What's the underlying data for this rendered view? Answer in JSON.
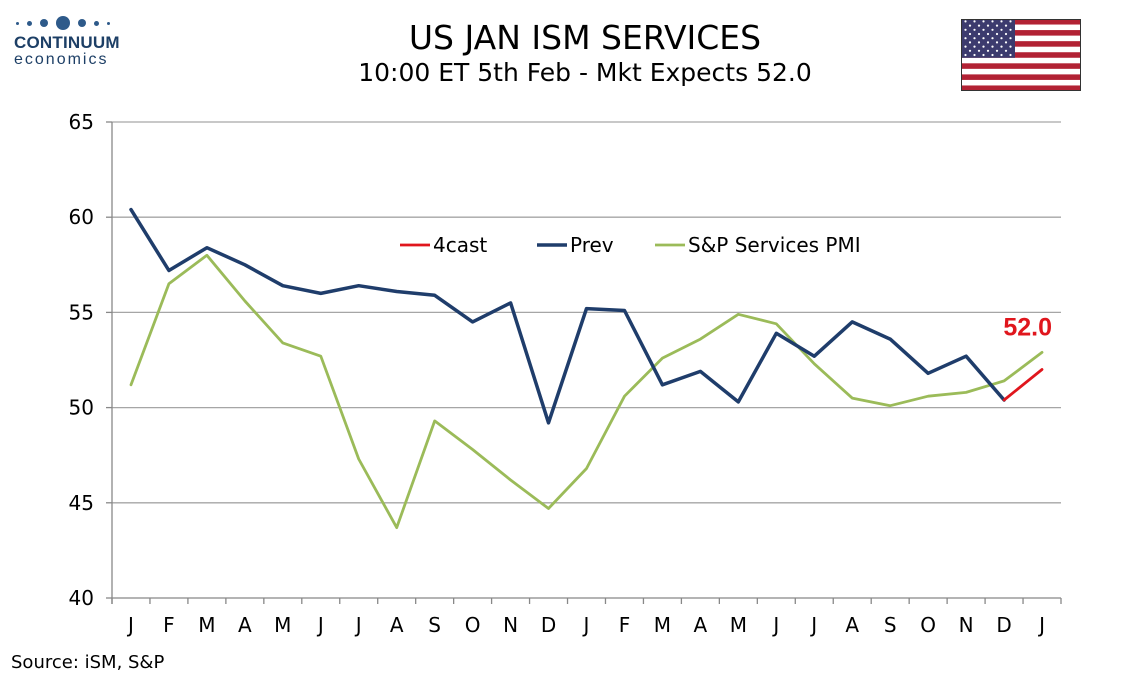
{
  "logo": {
    "brand": "CONTINUUM",
    "sub": "economics"
  },
  "header": {
    "title": "US JAN ISM SERVICES",
    "subtitle": "10:00 ET 5th Feb - Mkt Expects 52.0"
  },
  "flag_icon": "us-flag-icon",
  "colors": {
    "forecast": "#e0161d",
    "prev": "#1f3d6b",
    "pmi": "#9bbb59",
    "grid": "#a6a6a6"
  },
  "chart_data": {
    "type": "line",
    "categories": [
      "J",
      "F",
      "M",
      "A",
      "M",
      "J",
      "J",
      "A",
      "S",
      "O",
      "N",
      "D",
      "J",
      "F",
      "M",
      "A",
      "M",
      "J",
      "J",
      "A",
      "S",
      "O",
      "N",
      "D",
      "J"
    ],
    "ylim": [
      40,
      65
    ],
    "yticks": [
      40,
      45,
      50,
      55,
      60,
      65
    ],
    "grid": true,
    "legend_position": "top-center",
    "series": [
      {
        "name": "4cast",
        "color": "#e0161d",
        "values": [
          null,
          null,
          null,
          null,
          null,
          null,
          null,
          null,
          null,
          null,
          null,
          null,
          null,
          null,
          null,
          null,
          null,
          null,
          null,
          null,
          null,
          null,
          null,
          50.4,
          52.0
        ]
      },
      {
        "name": "Prev",
        "color": "#1f3d6b",
        "values": [
          60.4,
          57.2,
          58.4,
          57.5,
          56.4,
          56.0,
          56.4,
          56.1,
          55.9,
          54.5,
          55.5,
          49.2,
          55.2,
          55.1,
          51.2,
          51.9,
          50.3,
          53.9,
          52.7,
          54.5,
          53.6,
          51.8,
          52.7,
          50.4,
          null
        ]
      },
      {
        "name": "S&P Services PMI",
        "color": "#9bbb59",
        "values": [
          51.2,
          56.5,
          58.0,
          55.6,
          53.4,
          52.7,
          47.3,
          43.7,
          49.3,
          47.8,
          46.2,
          44.7,
          46.8,
          50.6,
          52.6,
          53.6,
          54.9,
          54.4,
          52.3,
          50.5,
          50.1,
          50.6,
          50.8,
          51.4,
          52.9
        ]
      }
    ],
    "annotation": "52.0"
  },
  "source": "Source: iSM, S&P"
}
